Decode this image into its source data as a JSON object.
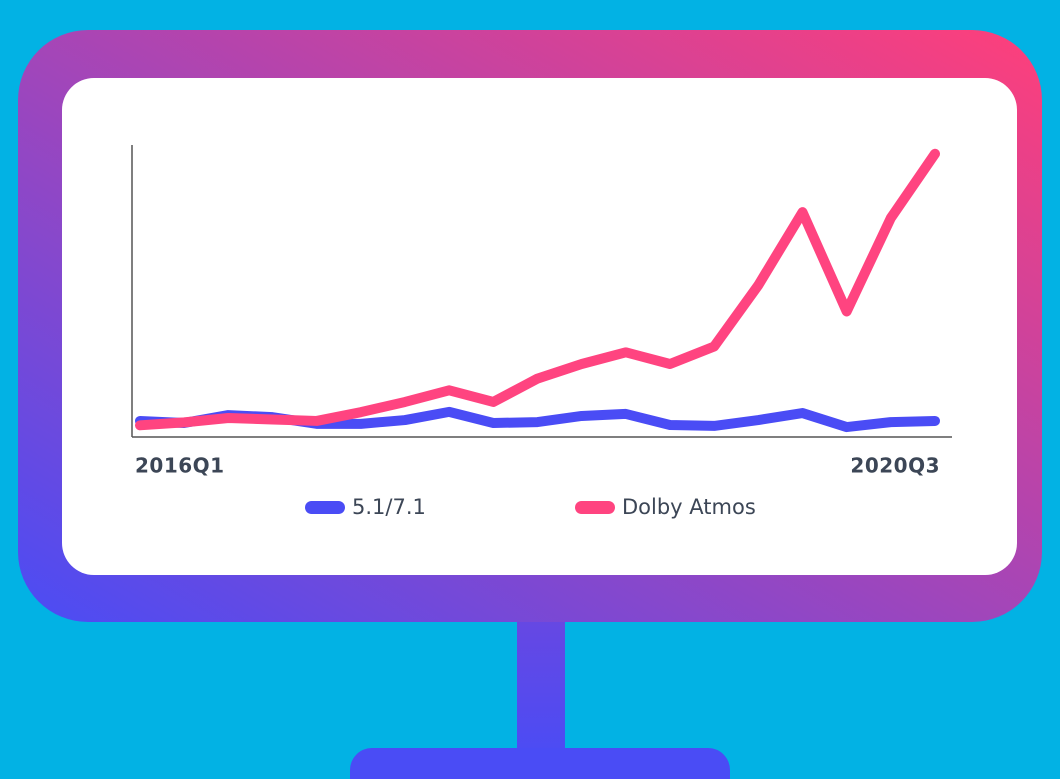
{
  "chart_data": {
    "type": "line",
    "categories": [
      "2016Q1",
      null,
      null,
      null,
      null,
      null,
      null,
      null,
      null,
      null,
      null,
      null,
      null,
      null,
      null,
      null,
      null,
      null,
      "2020Q3"
    ],
    "series": [
      {
        "name": "5.1/7.1",
        "color": "#4a4cf5",
        "values": [
          5.5,
          4.8,
          7.5,
          6.8,
          4.5,
          4.5,
          5.8,
          8.6,
          4.8,
          5.1,
          7.2,
          7.9,
          4.1,
          3.8,
          5.8,
          8.2,
          3.4,
          5.1,
          5.5
        ]
      },
      {
        "name": "Dolby Atmos",
        "color": "#ff4480",
        "values": [
          4,
          5,
          6.5,
          6,
          5.5,
          8.5,
          12,
          16,
          12,
          20,
          25,
          29,
          25,
          31,
          52,
          77,
          43,
          75,
          97
        ]
      }
    ],
    "ylim": [
      0,
      100
    ]
  }
}
